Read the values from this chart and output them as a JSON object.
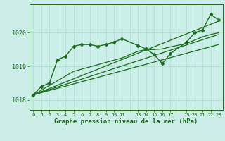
{
  "bg_color": "#cceee8",
  "grid_color": "#aaddcc",
  "line_color": "#1a6b1a",
  "title": "Graphe pression niveau de la mer (hPa)",
  "xlim": [
    -0.5,
    23.5
  ],
  "ylim": [
    1017.7,
    1020.85
  ],
  "yticks": [
    1018,
    1019,
    1020
  ],
  "xtick_positions": [
    0,
    1,
    2,
    3,
    4,
    5,
    6,
    7,
    8,
    9,
    10,
    11,
    13,
    14,
    15,
    16,
    17,
    19,
    20,
    21,
    22,
    23
  ],
  "xtick_labels": [
    "0",
    "1",
    "2",
    "3",
    "4",
    "5",
    "6",
    "7",
    "8",
    "9",
    "10",
    "11",
    "13",
    "14",
    "15",
    "16",
    "17",
    "19",
    "20",
    "21",
    "22",
    "23"
  ],
  "series_main": {
    "x": [
      0,
      1,
      2,
      3,
      4,
      5,
      6,
      7,
      8,
      9,
      10,
      11,
      13,
      14,
      15,
      16,
      17,
      19,
      20,
      21,
      22,
      23
    ],
    "y": [
      1018.15,
      1018.4,
      1018.5,
      1019.2,
      1019.3,
      1019.6,
      1019.65,
      1019.65,
      1019.6,
      1019.65,
      1019.72,
      1019.82,
      1019.62,
      1019.52,
      1019.35,
      1019.08,
      1019.38,
      1019.72,
      1020.0,
      1020.08,
      1020.55,
      1020.38
    ],
    "marker": "D",
    "markersize": 2.5,
    "linewidth": 1.0
  },
  "series_smooth": {
    "x": [
      0,
      5,
      11,
      13,
      14,
      15,
      16,
      17,
      19,
      20,
      21,
      22,
      23
    ],
    "y": [
      1018.15,
      1018.85,
      1019.25,
      1019.45,
      1019.5,
      1019.5,
      1019.52,
      1019.58,
      1019.68,
      1019.78,
      1019.88,
      1019.95,
      1020.0
    ],
    "linewidth": 0.9
  },
  "lines_straight": [
    {
      "x0": 0,
      "y0": 1018.15,
      "x1": 23,
      "y1": 1020.35,
      "linewidth": 0.9
    },
    {
      "x0": 0,
      "y0": 1018.15,
      "x1": 23,
      "y1": 1019.95,
      "linewidth": 0.9
    },
    {
      "x0": 0,
      "y0": 1018.15,
      "x1": 23,
      "y1": 1019.65,
      "linewidth": 0.9
    }
  ]
}
